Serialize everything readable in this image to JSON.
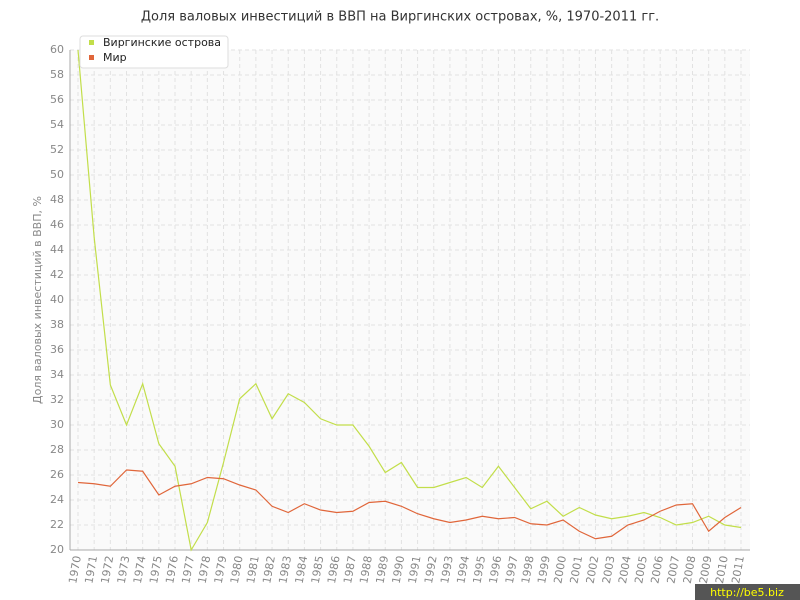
{
  "chart_data": {
    "type": "line",
    "title": "Доля валовых инвестиций в ВВП на Виргинских островах, %, 1970-2011 гг.",
    "ylabel": "Доля валовых инвестиций в ВВП, %",
    "watermark": "http://be5.biz",
    "categories": [
      "1970",
      "1971",
      "1972",
      "1973",
      "1974",
      "1975",
      "1976",
      "1977",
      "1978",
      "1979",
      "1980",
      "1981",
      "1982",
      "1983",
      "1984",
      "1985",
      "1986",
      "1987",
      "1988",
      "1989",
      "1990",
      "1991",
      "1992",
      "1993",
      "1994",
      "1995",
      "1996",
      "1997",
      "1998",
      "1999",
      "2000",
      "2001",
      "2002",
      "2003",
      "2004",
      "2005",
      "2006",
      "2007",
      "2008",
      "2009",
      "2010",
      "2011"
    ],
    "series": [
      {
        "name": "Виргинские острова",
        "color": "#c2de4a",
        "values": [
          60,
          45,
          33.2,
          30,
          33.3,
          28.5,
          26.7,
          20,
          22.2,
          27,
          32.1,
          33.3,
          30.5,
          32.5,
          31.8,
          30.5,
          30,
          30,
          28.3,
          26.2,
          27,
          25,
          25,
          25.4,
          25.8,
          25,
          26.7,
          25,
          23.3,
          23.9,
          22.7,
          23.4,
          22.8,
          22.5,
          22.7,
          23,
          22.6,
          22,
          22.2,
          22.7,
          22,
          21.8
        ]
      },
      {
        "name": "Мир",
        "color": "#e0663a",
        "values": [
          25.4,
          25.3,
          25.1,
          26.4,
          26.3,
          24.4,
          25.1,
          25.3,
          25.8,
          25.7,
          25.2,
          24.8,
          23.5,
          23,
          23.7,
          23.2,
          23,
          23.1,
          23.8,
          23.9,
          23.5,
          22.9,
          22.5,
          22.2,
          22.4,
          22.7,
          22.5,
          22.6,
          22.1,
          22,
          22.4,
          21.5,
          20.9,
          21.1,
          22,
          22.4,
          23.1,
          23.6,
          23.7,
          21.5,
          22.6,
          23.4
        ]
      }
    ],
    "ylim": [
      20,
      60
    ],
    "yticks": [
      20,
      22,
      24,
      26,
      28,
      30,
      32,
      34,
      36,
      38,
      40,
      42,
      44,
      46,
      48,
      50,
      52,
      54,
      56,
      58,
      60
    ],
    "grid": true,
    "legend": "top-left"
  }
}
